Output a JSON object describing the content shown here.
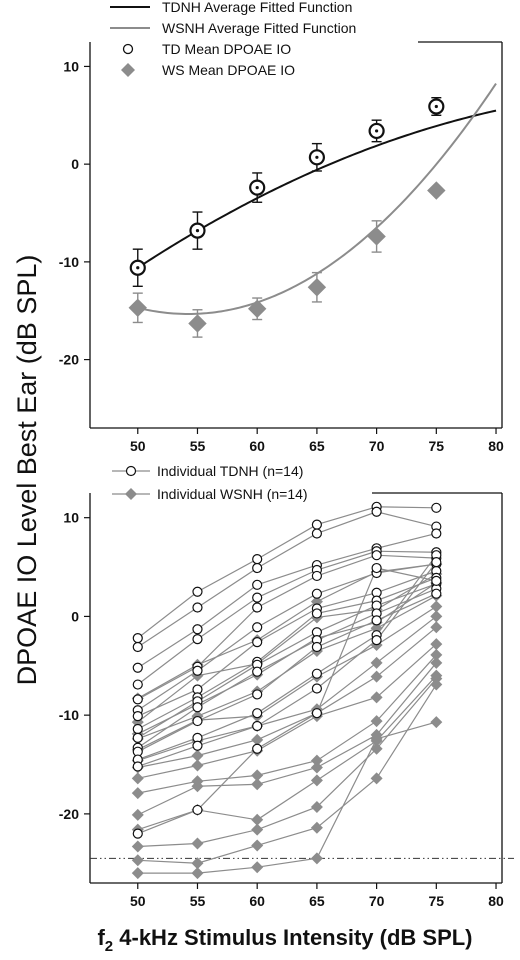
{
  "figure": {
    "ylabel": "DPOAE IO Level Best Ear (dB SPL)",
    "xlabel_sub": "2",
    "xlabel_prefix": "f",
    "xlabel_rest": " 4-kHz Stimulus Intensity (dB SPL)"
  },
  "colors": {
    "td": "#111111",
    "ws": "#8c8c8c",
    "individual_line": "#8c8c8c"
  },
  "chart_data": [
    {
      "type": "line",
      "panel": "top",
      "xlim": [
        46,
        80.5
      ],
      "ylim": [
        -27,
        12.5
      ],
      "xticks": [
        50,
        55,
        60,
        65,
        70,
        75,
        80
      ],
      "yticks": [
        10,
        0,
        -10,
        -20
      ],
      "legend": {
        "placement": "top",
        "entries": [
          {
            "key": "td_fit",
            "label": "TDNH Average Fitted Function",
            "marker": "line"
          },
          {
            "key": "ws_fit",
            "label": "WSNH Average Fitted Function",
            "marker": "line"
          },
          {
            "key": "td_mean",
            "label": "TD Mean DPOAE IO",
            "marker": "open-circle"
          },
          {
            "key": "ws_mean",
            "label": "WS Mean DPOAE IO",
            "marker": "diamond"
          }
        ]
      },
      "fits": [
        {
          "key": "td_fit",
          "coeffs": [
            -10.6,
            0.8,
            -0.0088
          ],
          "x0": 50,
          "x_range": [
            50,
            80
          ]
        },
        {
          "key": "ws_fit",
          "coeffs": [
            -14.7,
            -0.3,
            0.0355
          ],
          "x0": 50,
          "x_range": [
            50,
            80
          ]
        }
      ],
      "series": [
        {
          "key": "td_mean",
          "x": [
            50,
            55,
            60,
            65,
            70,
            75
          ],
          "y": [
            -10.6,
            -6.8,
            -2.4,
            0.7,
            3.4,
            5.9
          ],
          "err": [
            1.9,
            1.9,
            1.5,
            1.4,
            1.1,
            0.9
          ]
        },
        {
          "key": "ws_mean",
          "x": [
            50,
            55,
            60,
            65,
            70,
            75
          ],
          "y": [
            -14.7,
            -16.3,
            -14.8,
            -12.6,
            -7.4,
            -2.7
          ],
          "err": [
            1.5,
            1.4,
            1.1,
            1.5,
            1.6,
            0
          ]
        }
      ]
    },
    {
      "type": "line",
      "panel": "bottom",
      "xlim": [
        46,
        80.5
      ],
      "ylim": [
        -27,
        12.5
      ],
      "xticks": [
        50,
        55,
        60,
        65,
        70,
        75,
        80
      ],
      "yticks": [
        10,
        0,
        -10,
        -20
      ],
      "noise_floor": -24.5,
      "legend": {
        "placement": "top",
        "entries": [
          {
            "key": "td_individual",
            "label": "Individual TDNH (n=14)",
            "marker": "open-circle-line"
          },
          {
            "key": "ws_individual",
            "label": "Individual WSNH (n=14)",
            "marker": "diamond-line"
          }
        ]
      },
      "x": [
        50,
        55,
        60,
        65,
        70,
        75
      ],
      "td_individual": [
        [
          -2.2,
          2.5,
          5.8,
          9.3,
          11.1,
          11.0
        ],
        [
          -3.1,
          0.9,
          4.9,
          8.4,
          10.6,
          9.1
        ],
        [
          -5.2,
          -1.3,
          3.2,
          5.2,
          6.9,
          8.4
        ],
        [
          -6.9,
          -2.3,
          1.9,
          4.7,
          6.6,
          6.5
        ],
        [
          -8.4,
          -5.1,
          0.9,
          4.1,
          6.2,
          5.9
        ],
        [
          -9.5,
          -5.5,
          -1.1,
          2.3,
          4.4,
          5.3
        ],
        [
          -10.1,
          -7.4,
          -2.6,
          0.8,
          2.4,
          4.6
        ],
        [
          -11.4,
          -8.2,
          -4.6,
          0.3,
          1.6,
          3.9
        ],
        [
          -12.3,
          -8.6,
          -4.9,
          -1.6,
          1.1,
          3.3
        ],
        [
          -13.3,
          -9.2,
          -5.6,
          -2.4,
          0.3,
          2.8
        ],
        [
          -13.7,
          -10.6,
          -7.9,
          -3.1,
          -0.4,
          2.3
        ],
        [
          -14.5,
          -12.3,
          -9.8,
          -5.8,
          -1.9,
          6.2
        ],
        [
          -15.2,
          -13.1,
          -11.1,
          -7.3,
          -2.4,
          5.5
        ],
        [
          -22.0,
          -19.6,
          -13.4,
          -9.8,
          4.9,
          3.6
        ]
      ],
      "ws_individual": [
        [
          -8.3,
          -4.9,
          -2.4,
          1.5,
          4.5,
          5.3
        ],
        [
          -10.7,
          -6.0,
          -4.8,
          -0.1,
          0.7,
          4.3
        ],
        [
          -11.9,
          -8.9,
          -5.9,
          -2.2,
          -0.6,
          3.4
        ],
        [
          -12.4,
          -10.1,
          -7.6,
          -3.5,
          -1.2,
          2.1
        ],
        [
          -13.5,
          -10.5,
          -10.1,
          -6.1,
          -2.9,
          1.0
        ],
        [
          -14.6,
          -12.6,
          -11.1,
          -9.4,
          -4.7,
          0.0
        ],
        [
          -15.3,
          -14.1,
          -12.5,
          -9.8,
          -6.1,
          -1.1
        ],
        [
          -16.4,
          -15.1,
          -13.6,
          -10.1,
          -8.2,
          -2.8
        ],
        [
          -17.9,
          -16.7,
          -16.1,
          -14.6,
          -10.6,
          -3.9
        ],
        [
          -20.1,
          -17.2,
          -17.0,
          -15.3,
          -12.0,
          -4.7
        ],
        [
          -21.6,
          -19.6,
          -20.6,
          -16.6,
          -12.6,
          -6.0
        ],
        [
          -23.3,
          -23.0,
          -21.6,
          -19.3,
          -13.4,
          -6.3
        ],
        [
          -24.7,
          -25.0,
          -23.2,
          -21.4,
          -16.4,
          -6.9
        ],
        [
          -26.0,
          -26.0,
          -25.4,
          -24.5,
          -12.4,
          -10.7
        ]
      ]
    }
  ]
}
